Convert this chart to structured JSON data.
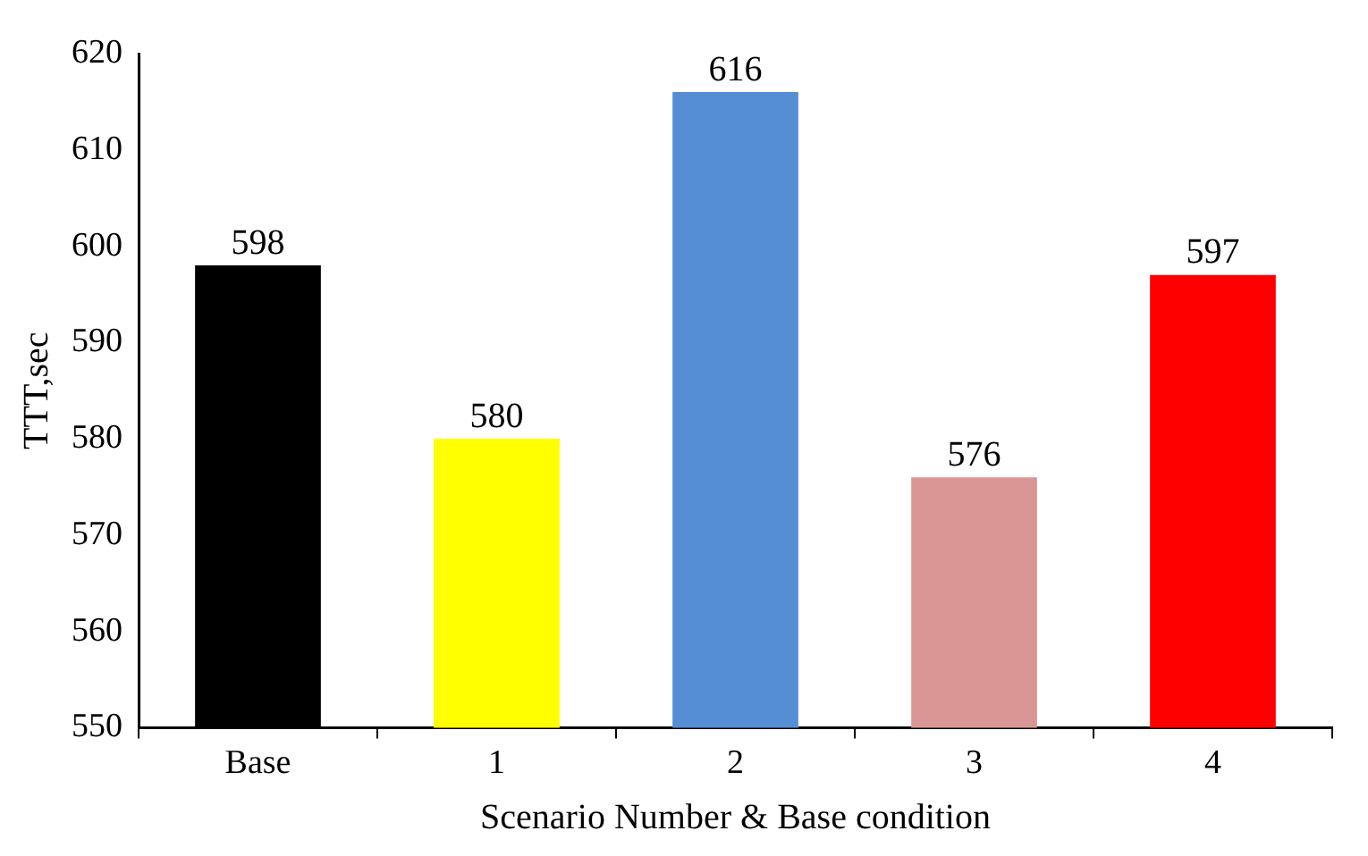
{
  "chart_data": {
    "type": "bar",
    "xlabel": "Scenario Number & Base condition",
    "ylabel": "TTT,sec",
    "categories": [
      "Base",
      "1",
      "2",
      "3",
      "4"
    ],
    "values": [
      598,
      580,
      616,
      576,
      597
    ],
    "colors": [
      "#000000",
      "#ffff00",
      "#558ed5",
      "#d99694",
      "#ff0000"
    ],
    "ylim": [
      550,
      620
    ],
    "yticks": [
      550,
      560,
      570,
      580,
      590,
      600,
      610,
      620
    ],
    "data_labels": true,
    "grid": false,
    "legend": false
  }
}
